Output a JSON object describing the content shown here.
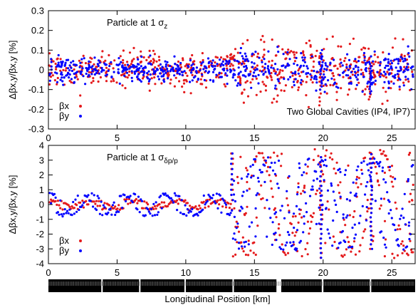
{
  "chart_data": [
    {
      "type": "scatter",
      "annotation": "Particle at 1 σ",
      "annotation_sub": "z",
      "annotation2": "Two Global Cavities (IP4, IP7)",
      "ylabel": "Δβx,y/βx,y [%]",
      "xlim": [
        0,
        26.7
      ],
      "ylim": [
        -0.3,
        0.3
      ],
      "x_ticks": [
        0,
        5,
        10,
        15,
        20,
        25
      ],
      "x_tick_labels": [
        "0",
        "5",
        "10",
        "15",
        "20",
        "25"
      ],
      "y_ticks": [
        -0.3,
        -0.2,
        -0.1,
        0,
        0.1,
        0.2,
        0.3
      ],
      "y_tick_labels": [
        "-0.3",
        "-0.2",
        "-0.1",
        "0",
        "0.1",
        "0.2",
        "0.3"
      ],
      "grid": false,
      "legend_position": "bottom-left",
      "series": [
        {
          "name": "βx",
          "color": "#e41a1c",
          "marker": "dot",
          "description": "approx. 600 points; |Δβ/β| <= 0.1% for x < 13.5 km, up to ~0.23% for x > 13.5 km; vertical streaks near 20 km and 23.5 km"
        },
        {
          "name": "βy",
          "color": "#0000ff",
          "marker": "dot",
          "description": "approx. 600 points; |Δβ/β| <= 0.07% for x < 13.5 km, up to ~0.12% for x > 13.5 km"
        }
      ]
    },
    {
      "type": "scatter",
      "annotation": "Particle at 1 σ",
      "annotation_sub": "δp/p",
      "xlabel": "Longitudinal Position [km]",
      "ylabel": "Δβx,y/βx,y [%]",
      "xlim": [
        0,
        26.7
      ],
      "ylim": [
        -4,
        4
      ],
      "x_ticks": [
        0,
        5,
        10,
        15,
        20,
        25
      ],
      "x_tick_labels": [
        "0",
        "5",
        "10",
        "15",
        "20",
        "25"
      ],
      "y_ticks": [
        -4,
        -3,
        -2,
        -1,
        0,
        1,
        2,
        3,
        4
      ],
      "y_tick_labels": [
        "-4",
        "-3",
        "-2",
        "-1",
        "0",
        "1",
        "2",
        "3",
        "4"
      ],
      "grid": false,
      "legend_position": "bottom-left",
      "series": [
        {
          "name": "βx",
          "color": "#e41a1c",
          "marker": "dot",
          "description": "amplitude ~0.3% for x < 13.4 km; beating amplitude ~3.5% for x > 13.4 km; vertical streaks near 20 km and 23.5 km"
        },
        {
          "name": "βy",
          "color": "#0000ff",
          "marker": "dot",
          "description": "sinusoidal beating amplitude ~0.7% for x < 13.4 km; ~3% for x > 13.4 km"
        }
      ]
    }
  ]
}
